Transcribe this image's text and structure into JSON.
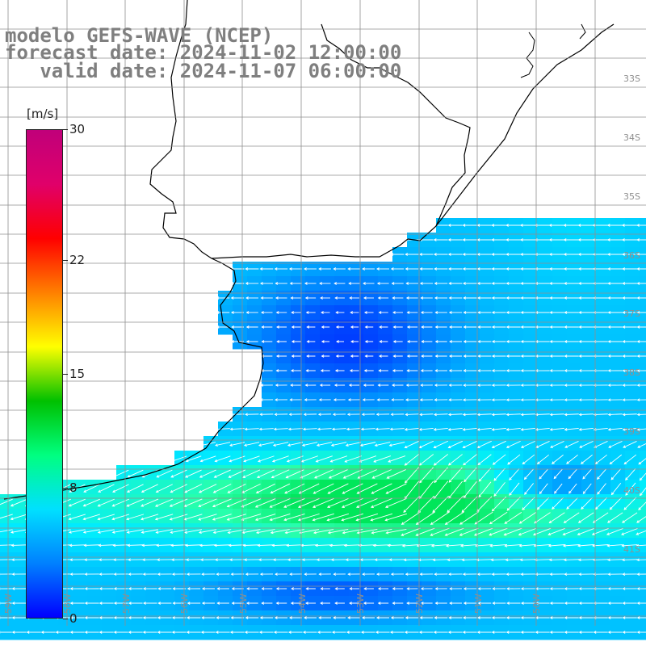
{
  "title": {
    "line1": "modelo GEFS-WAVE (NCEP)",
    "line2": "forecast date: 2024-11-02 12:00:00",
    "line3": "   valid date: 2024-11-07 06:00:00"
  },
  "colorbar": {
    "unit": "[m/s]",
    "range": [
      0,
      30
    ],
    "ticks": [
      "30",
      "22",
      "15",
      "8",
      "0"
    ],
    "tick_values": [
      30,
      22,
      15,
      8,
      0
    ],
    "colors": [
      "#0000ff",
      "#0080ff",
      "#00e0ff",
      "#00ff80",
      "#00c000",
      "#ffff00",
      "#ff8000",
      "#ff0000",
      "#e0006a",
      "#c0007a"
    ]
  },
  "grid": {
    "lat_labels": [
      "33S",
      "34S",
      "35S",
      "36S",
      "37S",
      "38S",
      "39S",
      "40S",
      "41S"
    ],
    "lon_labels": [
      "59W",
      "58W",
      "57W",
      "56W",
      "55W",
      "54W",
      "53W",
      "52W",
      "51W",
      "50W"
    ]
  },
  "colors": {
    "land": "#ffffff",
    "coast": "#000000",
    "grid": "#8f8f8f",
    "title": "#7f7f7f",
    "arrow": "#ffffff"
  }
}
